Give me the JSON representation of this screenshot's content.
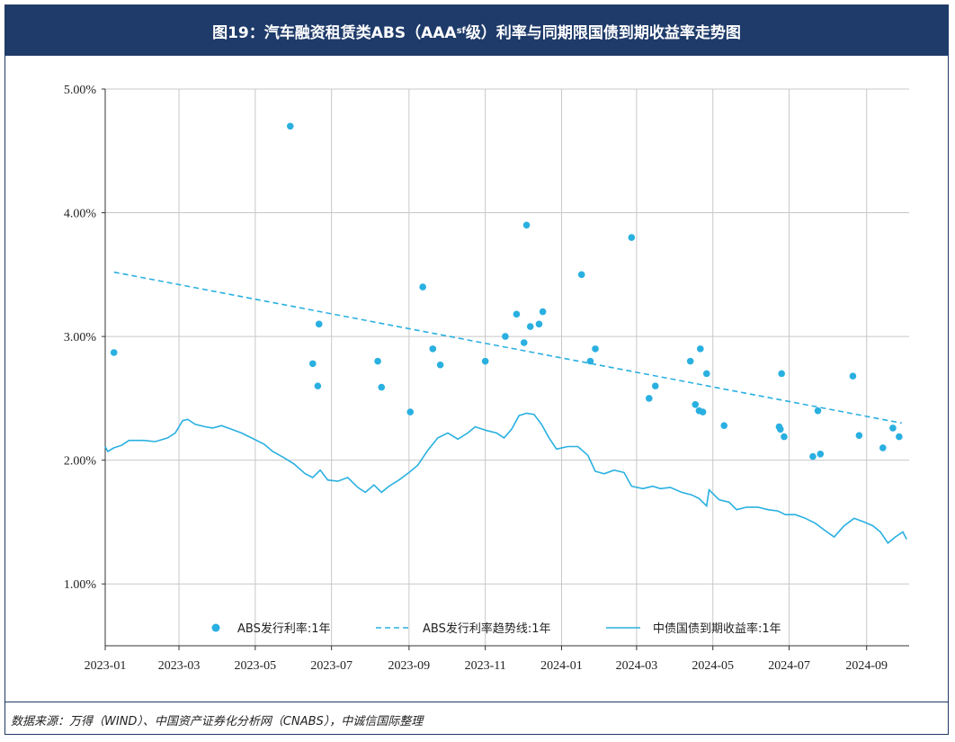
{
  "title": {
    "main": "图19：汽车融资租赁类ABS（AAA",
    "sub": "sf",
    "tail": "级）利率与同期限国债到期收益率走势图"
  },
  "source": "数据来源：万得（WIND）、中国资产证券化分析网（CNABS），中诚信国际整理",
  "colors": {
    "series": "#29b0e0",
    "title_bg": "#1f3b6a",
    "grid": "#c8c8c8"
  },
  "chart_data": {
    "type": "scatter+line",
    "x_range": [
      "2023-01-01",
      "2024-10-05"
    ],
    "y_range": [
      0.005,
      0.05
    ],
    "x_ticks": [
      {
        "date": "2023-01-01",
        "label": "2023-01"
      },
      {
        "date": "2023-03-01",
        "label": "2023-03"
      },
      {
        "date": "2023-05-01",
        "label": "2023-05"
      },
      {
        "date": "2023-07-01",
        "label": "2023-07"
      },
      {
        "date": "2023-09-01",
        "label": "2023-09"
      },
      {
        "date": "2023-11-01",
        "label": "2023-11"
      },
      {
        "date": "2024-01-01",
        "label": "2024-01"
      },
      {
        "date": "2024-03-01",
        "label": "2024-03"
      },
      {
        "date": "2024-05-01",
        "label": "2024-05"
      },
      {
        "date": "2024-07-01",
        "label": "2024-07"
      },
      {
        "date": "2024-09-01",
        "label": "2024-09"
      }
    ],
    "y_ticks": [
      {
        "value": 0.01,
        "label": "1.00%"
      },
      {
        "value": 0.02,
        "label": "2.00%"
      },
      {
        "value": 0.03,
        "label": "3.00%"
      },
      {
        "value": 0.04,
        "label": "4.00%"
      },
      {
        "value": 0.05,
        "label": "5.00%"
      }
    ],
    "legend": [
      {
        "name": "ABS发行利率:1年",
        "kind": "dot"
      },
      {
        "name": "ABS发行利率趋势线:1年",
        "kind": "dash"
      },
      {
        "name": "中债国债到期收益率:1年",
        "kind": "line"
      }
    ],
    "abs_rate": [
      [
        "2023-01-08",
        2.87
      ],
      [
        "2023-05-29",
        4.7
      ],
      [
        "2023-06-16",
        2.78
      ],
      [
        "2023-06-20",
        2.6
      ],
      [
        "2023-06-21",
        3.1
      ],
      [
        "2023-08-07",
        2.8
      ],
      [
        "2023-08-10",
        2.59
      ],
      [
        "2023-09-02",
        2.39
      ],
      [
        "2023-09-12",
        3.4
      ],
      [
        "2023-09-20",
        2.9
      ],
      [
        "2023-09-26",
        2.77
      ],
      [
        "2023-11-01",
        2.8
      ],
      [
        "2023-11-17",
        3.0
      ],
      [
        "2023-11-26",
        3.18
      ],
      [
        "2023-12-02",
        2.95
      ],
      [
        "2023-12-04",
        3.9
      ],
      [
        "2023-12-07",
        3.08
      ],
      [
        "2023-12-14",
        3.1
      ],
      [
        "2023-12-17",
        3.2
      ],
      [
        "2024-01-17",
        3.5
      ],
      [
        "2024-01-24",
        2.8
      ],
      [
        "2024-01-28",
        2.9
      ],
      [
        "2024-02-26",
        3.8
      ],
      [
        "2024-03-11",
        2.5
      ],
      [
        "2024-03-16",
        2.6
      ],
      [
        "2024-04-13",
        2.8
      ],
      [
        "2024-04-17",
        2.45
      ],
      [
        "2024-04-20",
        2.4
      ],
      [
        "2024-04-21",
        2.9
      ],
      [
        "2024-04-23",
        2.39
      ],
      [
        "2024-04-26",
        2.7
      ],
      [
        "2024-05-10",
        2.28
      ],
      [
        "2024-06-23",
        2.27
      ],
      [
        "2024-06-24",
        2.25
      ],
      [
        "2024-06-25",
        2.7
      ],
      [
        "2024-06-27",
        2.19
      ],
      [
        "2024-07-20",
        2.03
      ],
      [
        "2024-07-24",
        2.4
      ],
      [
        "2024-07-26",
        2.05
      ],
      [
        "2024-08-21",
        2.68
      ],
      [
        "2024-08-26",
        2.2
      ],
      [
        "2024-09-14",
        2.1
      ],
      [
        "2024-09-22",
        2.26
      ],
      [
        "2024-09-27",
        2.19
      ]
    ],
    "abs_trend": [
      [
        "2023-01-08",
        3.52
      ],
      [
        "2024-09-29",
        2.3
      ]
    ],
    "treasury_yield": [
      [
        "2023-01-01",
        2.11
      ],
      [
        "2023-01-03",
        2.07
      ],
      [
        "2023-01-08",
        2.1
      ],
      [
        "2023-01-14",
        2.12
      ],
      [
        "2023-01-20",
        2.16
      ],
      [
        "2023-02-01",
        2.16
      ],
      [
        "2023-02-10",
        2.15
      ],
      [
        "2023-02-20",
        2.18
      ],
      [
        "2023-02-26",
        2.22
      ],
      [
        "2023-03-04",
        2.32
      ],
      [
        "2023-03-08",
        2.33
      ],
      [
        "2023-03-14",
        2.29
      ],
      [
        "2023-03-22",
        2.27
      ],
      [
        "2023-03-28",
        2.26
      ],
      [
        "2023-04-04",
        2.28
      ],
      [
        "2023-04-12",
        2.25
      ],
      [
        "2023-04-20",
        2.22
      ],
      [
        "2023-04-28",
        2.18
      ],
      [
        "2023-05-08",
        2.13
      ],
      [
        "2023-05-15",
        2.07
      ],
      [
        "2023-05-24",
        2.02
      ],
      [
        "2023-06-01",
        1.97
      ],
      [
        "2023-06-10",
        1.89
      ],
      [
        "2023-06-16",
        1.86
      ],
      [
        "2023-06-22",
        1.92
      ],
      [
        "2023-06-28",
        1.84
      ],
      [
        "2023-07-06",
        1.83
      ],
      [
        "2023-07-14",
        1.86
      ],
      [
        "2023-07-22",
        1.78
      ],
      [
        "2023-07-28",
        1.74
      ],
      [
        "2023-08-04",
        1.8
      ],
      [
        "2023-08-10",
        1.74
      ],
      [
        "2023-08-16",
        1.79
      ],
      [
        "2023-08-24",
        1.84
      ],
      [
        "2023-09-01",
        1.9
      ],
      [
        "2023-09-08",
        1.96
      ],
      [
        "2023-09-16",
        2.08
      ],
      [
        "2023-09-24",
        2.18
      ],
      [
        "2023-10-02",
        2.22
      ],
      [
        "2023-10-10",
        2.17
      ],
      [
        "2023-10-18",
        2.22
      ],
      [
        "2023-10-24",
        2.27
      ],
      [
        "2023-11-02",
        2.24
      ],
      [
        "2023-11-10",
        2.22
      ],
      [
        "2023-11-16",
        2.18
      ],
      [
        "2023-11-22",
        2.25
      ],
      [
        "2023-11-28",
        2.36
      ],
      [
        "2023-12-04",
        2.38
      ],
      [
        "2023-12-10",
        2.37
      ],
      [
        "2023-12-16",
        2.29
      ],
      [
        "2023-12-22",
        2.18
      ],
      [
        "2023-12-28",
        2.09
      ],
      [
        "2024-01-06",
        2.11
      ],
      [
        "2024-01-14",
        2.11
      ],
      [
        "2024-01-22",
        2.04
      ],
      [
        "2024-01-28",
        1.91
      ],
      [
        "2024-02-04",
        1.89
      ],
      [
        "2024-02-12",
        1.92
      ],
      [
        "2024-02-20",
        1.9
      ],
      [
        "2024-02-26",
        1.79
      ],
      [
        "2024-03-06",
        1.77
      ],
      [
        "2024-03-14",
        1.79
      ],
      [
        "2024-03-20",
        1.77
      ],
      [
        "2024-03-28",
        1.78
      ],
      [
        "2024-04-06",
        1.74
      ],
      [
        "2024-04-14",
        1.72
      ],
      [
        "2024-04-20",
        1.69
      ],
      [
        "2024-04-26",
        1.63
      ],
      [
        "2024-04-28",
        1.76
      ],
      [
        "2024-05-06",
        1.68
      ],
      [
        "2024-05-14",
        1.66
      ],
      [
        "2024-05-20",
        1.6
      ],
      [
        "2024-05-28",
        1.62
      ],
      [
        "2024-06-06",
        1.62
      ],
      [
        "2024-06-14",
        1.6
      ],
      [
        "2024-06-22",
        1.59
      ],
      [
        "2024-06-28",
        1.56
      ],
      [
        "2024-07-06",
        1.56
      ],
      [
        "2024-07-14",
        1.53
      ],
      [
        "2024-07-22",
        1.49
      ],
      [
        "2024-07-30",
        1.43
      ],
      [
        "2024-08-06",
        1.38
      ],
      [
        "2024-08-14",
        1.47
      ],
      [
        "2024-08-22",
        1.53
      ],
      [
        "2024-08-30",
        1.5
      ],
      [
        "2024-09-06",
        1.47
      ],
      [
        "2024-09-12",
        1.42
      ],
      [
        "2024-09-18",
        1.33
      ],
      [
        "2024-09-24",
        1.38
      ],
      [
        "2024-09-30",
        1.42
      ],
      [
        "2024-10-03",
        1.36
      ]
    ]
  }
}
